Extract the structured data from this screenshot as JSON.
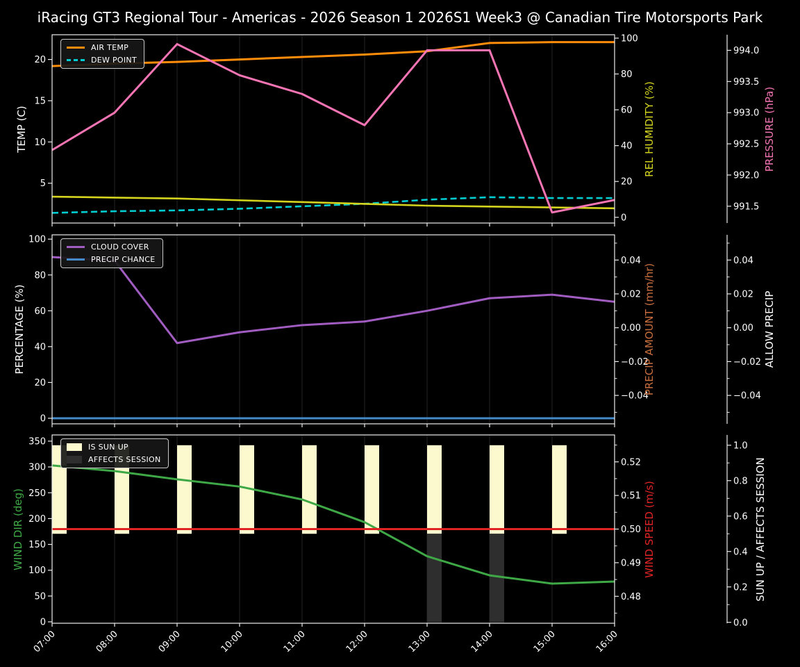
{
  "title": "iRacing GT3 Regional Tour - Americas - 2026 Season 1 2026S1 Week3 @ Canadian Tire Motorsports Park",
  "x_labels": [
    "07:00",
    "08:00",
    "09:00",
    "10:00",
    "11:00",
    "12:00",
    "13:00",
    "14:00",
    "15:00",
    "16:00"
  ],
  "palette": {
    "background": "#000000",
    "spine": "#ececec",
    "grid": "#242424",
    "tick_label": "#ffffff"
  },
  "chart_data": [
    {
      "type": "line",
      "name": "temperature-humidity-pressure-chart",
      "x": [
        "07:00",
        "08:00",
        "09:00",
        "10:00",
        "11:00",
        "12:00",
        "13:00",
        "14:00",
        "15:00",
        "16:00"
      ],
      "axes": {
        "left": {
          "label": "TEMP (C)",
          "color": "#ffffff",
          "ticks": [
            5,
            10,
            15,
            20
          ],
          "tick_labels": [
            "5",
            "10",
            "15",
            "20"
          ],
          "ylim": [
            0.17,
            23.0
          ]
        },
        "right1": {
          "label": "REL HUMIDITY (%)",
          "color": "#d4d41e",
          "ticks": [
            0,
            20,
            40,
            60,
            80,
            100
          ],
          "tick_labels": [
            "0",
            "20",
            "40",
            "60",
            "80",
            "100"
          ],
          "ylim": [
            -3.2,
            101.9
          ]
        },
        "right2": {
          "label": "PRESSURE (hPa)",
          "color": "#f575b4",
          "ticks": [
            991.5,
            992.0,
            992.5,
            993.0,
            993.5,
            994.0
          ],
          "tick_labels": [
            "991.5",
            "992.0",
            "992.5",
            "993.0",
            "993.5",
            "994.0"
          ],
          "ylim": [
            991.23,
            994.25
          ]
        }
      },
      "series": [
        {
          "name": "AIR TEMP",
          "axis": "left",
          "color": "#ff8c0a",
          "width": 3,
          "values": [
            19.2,
            19.5,
            19.7,
            20.0,
            20.3,
            20.6,
            21.0,
            22.0,
            22.1,
            22.1
          ]
        },
        {
          "name": "DEW POINT",
          "axis": "left",
          "color": "#00cdd1",
          "width": 2.6,
          "dash": "9 5",
          "values": [
            1.4,
            1.6,
            1.7,
            1.9,
            2.2,
            2.5,
            3.0,
            3.3,
            3.2,
            3.2
          ]
        },
        {
          "name": "REL HUMIDITY",
          "axis": "right1",
          "color": "#d4d41e",
          "width": 2.6,
          "values": [
            11.5,
            11.0,
            10.5,
            9.5,
            8.5,
            7.5,
            6.5,
            6.0,
            5.5,
            5.0
          ]
        },
        {
          "name": "PRESSURE",
          "axis": "right2",
          "color": "#f575b4",
          "width": 3,
          "values": [
            992.4,
            993.0,
            994.1,
            993.6,
            993.3,
            992.8,
            994.0,
            994.0,
            991.4,
            991.6
          ]
        }
      ],
      "legend": [
        "AIR TEMP",
        "DEW POINT"
      ]
    },
    {
      "type": "line",
      "name": "cloud-precip-chart",
      "x": [
        "07:00",
        "08:00",
        "09:00",
        "10:00",
        "11:00",
        "12:00",
        "13:00",
        "14:00",
        "15:00",
        "16:00"
      ],
      "axes": {
        "left": {
          "label": "PERCENTAGE (%)",
          "color": "#ffffff",
          "ticks": [
            0,
            20,
            40,
            60,
            80,
            100
          ],
          "tick_labels": [
            "0",
            "20",
            "40",
            "60",
            "80",
            "100"
          ],
          "ylim": [
            -3.1,
            102.4
          ]
        },
        "right1": {
          "label": "PRECIP AMOUNT (mm/hr)",
          "color": "#c86e3c",
          "ticks": [
            -0.04,
            -0.02,
            0,
            0.02,
            0.04
          ],
          "tick_labels": [
            "−0.04",
            "−0.02",
            "0.00",
            "0.02",
            "0.04"
          ],
          "ylim": [
            -0.0568,
            0.0549
          ],
          "minor_step": 0.01
        },
        "right2": {
          "label": "ALLOW PRECIP",
          "color": "#ffffff",
          "ticks": [
            -0.04,
            -0.02,
            0,
            0.02,
            0.04
          ],
          "tick_labels": [
            "−0.04",
            "−0.02",
            "0.00",
            "0.02",
            "0.04"
          ],
          "ylim": [
            -0.0568,
            0.0549
          ],
          "minor_step": 0.01
        }
      },
      "series": [
        {
          "name": "CLOUD COVER",
          "axis": "left",
          "color": "#a05cc0",
          "width": 3,
          "values": [
            90,
            88,
            42,
            48,
            52,
            54,
            60,
            67,
            69,
            65
          ]
        },
        {
          "name": "PRECIP CHANCE",
          "axis": "left",
          "color": "#4489c8",
          "width": 3,
          "values": [
            0,
            0,
            0,
            0,
            0,
            0,
            0,
            0,
            0,
            0
          ]
        }
      ],
      "legend": [
        "CLOUD COVER",
        "PRECIP CHANCE"
      ]
    },
    {
      "type": "line-bar",
      "name": "wind-sun-chart",
      "x": [
        "07:00",
        "08:00",
        "09:00",
        "10:00",
        "11:00",
        "12:00",
        "13:00",
        "14:00",
        "15:00",
        "16:00"
      ],
      "axes": {
        "left": {
          "label": "WIND DIR (deg)",
          "color": "#3fa846",
          "ticks": [
            0,
            50,
            100,
            150,
            200,
            250,
            300,
            350
          ],
          "tick_labels": [
            "0",
            "50",
            "100",
            "150",
            "200",
            "250",
            "300",
            "350"
          ],
          "ylim": [
            -2.7,
            362
          ]
        },
        "right1": {
          "label": "WIND SPEED (m/s)",
          "color": "#e02424",
          "ticks": [
            0.48,
            0.49,
            0.5,
            0.51,
            0.52
          ],
          "tick_labels": [
            "0.48",
            "0.49",
            "0.50",
            "0.51",
            "0.52"
          ],
          "ylim": [
            0.472,
            0.528
          ],
          "minor_step": 0.005
        },
        "right2": {
          "label": "SUN UP / AFFECTS SESSION",
          "color": "#ffffff",
          "ticks": [
            0,
            0.2,
            0.4,
            0.6,
            0.8,
            1.0
          ],
          "tick_labels": [
            "0.0",
            "0.2",
            "0.4",
            "0.6",
            "0.8",
            "1.0"
          ],
          "ylim": [
            -0.005,
            1.058
          ],
          "minor_step": 0.1
        }
      },
      "bars": [
        {
          "name": "IS SUN UP",
          "axis": "right2",
          "color": "#fdf9cf",
          "y0": 0.5,
          "y1": 1.0,
          "values": [
            1,
            1,
            1,
            1,
            1,
            1,
            1,
            1,
            1,
            0
          ]
        },
        {
          "name": "AFFECTS SESSION",
          "axis": "right2",
          "color": "#2e2e2e",
          "y0": 0.0,
          "y1": 0.5,
          "values": [
            0,
            0,
            0,
            0,
            0,
            0,
            1,
            1,
            0,
            0
          ]
        }
      ],
      "series": [
        {
          "name": "WIND DIR",
          "axis": "left",
          "color": "#3fa846",
          "width": 3,
          "values": [
            303,
            292,
            276,
            262,
            237,
            193,
            127,
            90,
            74,
            78
          ]
        },
        {
          "name": "WIND SPEED",
          "axis": "right1",
          "color": "#e02424",
          "width": 3,
          "values": [
            0.5,
            0.5,
            0.5,
            0.5,
            0.5,
            0.5,
            0.5,
            0.5,
            0.5,
            0.5
          ]
        }
      ],
      "legend": [
        "IS SUN UP",
        "AFFECTS SESSION"
      ]
    }
  ]
}
